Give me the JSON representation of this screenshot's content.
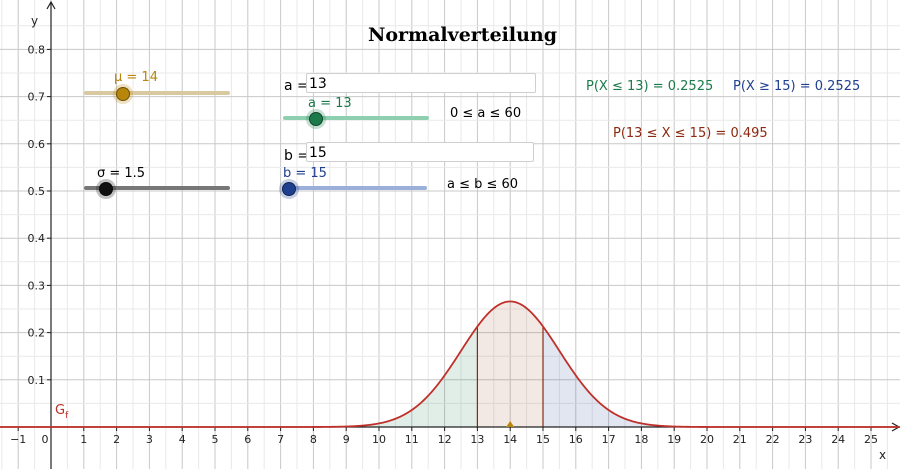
{
  "title": "Normalverteilung",
  "axis": {
    "xlabel": "x",
    "ylabel": "y"
  },
  "graph_label": {
    "main": "G",
    "sub": "f"
  },
  "sliders": {
    "mu": {
      "label": "μ = 14",
      "value": 14,
      "color": "#b8860b"
    },
    "sigma": {
      "label": "σ = 1.5",
      "value": 1.5,
      "color": "#333333"
    },
    "a": {
      "label": "a = 13",
      "value": 13,
      "range_text": "0 ≤ a ≤ 60",
      "color": "#1a7a4a"
    },
    "b": {
      "label": "b = 15",
      "value": 15,
      "range_text": "a ≤ b ≤ 60",
      "color": "#1f3f8f"
    }
  },
  "inputs": {
    "a": {
      "label": "a =",
      "value": "13"
    },
    "b": {
      "label": "b =",
      "value": "15"
    }
  },
  "probabilities": {
    "left": {
      "text": "P(X ≤ 13) = 0.2525",
      "color": "#1a7a4a"
    },
    "right": {
      "text": "P(X ≥ 15) = 0.2525",
      "color": "#1f3f8f"
    },
    "middle": {
      "text": "P(13 ≤ X ≤ 15) = 0.495",
      "color": "#8b2a10"
    }
  },
  "chart_data": {
    "type": "area",
    "title": "Normalverteilung",
    "xlabel": "x",
    "ylabel": "y",
    "xlim": [
      -1.5,
      26.3
    ],
    "ylim": [
      -0.02,
      0.88
    ],
    "xticks": [
      -1,
      0,
      1,
      2,
      3,
      4,
      5,
      6,
      7,
      8,
      9,
      10,
      11,
      12,
      13,
      14,
      15,
      16,
      17,
      18,
      19,
      20,
      21,
      22,
      23,
      24,
      25
    ],
    "yticks": [
      0.1,
      0.2,
      0.3,
      0.4,
      0.5,
      0.6,
      0.7,
      0.8
    ],
    "grid": true,
    "series": [
      {
        "name": "G_f",
        "kind": "normal_pdf",
        "mu": 14,
        "sigma": 1.5,
        "color": "#c0302a"
      }
    ],
    "shaded_regions": [
      {
        "from": 8.5,
        "to": 13,
        "color": "#1a7a4a"
      },
      {
        "from": 13,
        "to": 15,
        "color": "#a0522d"
      },
      {
        "from": 15,
        "to": 19.5,
        "color": "#1f3f8f"
      }
    ],
    "marker": {
      "x": 14,
      "y": 0,
      "color": "#b8860b"
    }
  }
}
